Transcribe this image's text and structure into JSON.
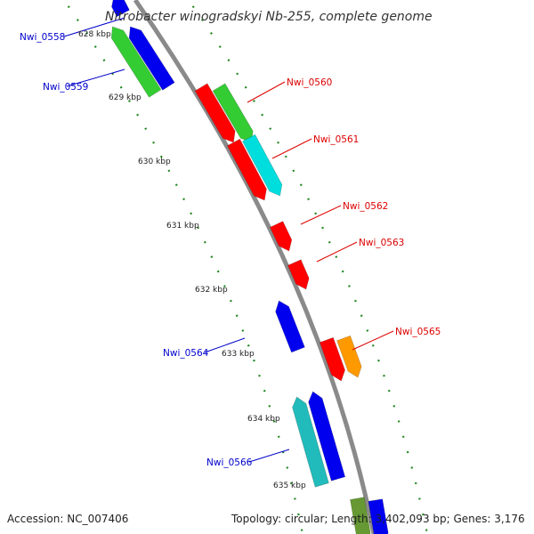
{
  "title": "Nitrobacter winogradskyi Nb-255, complete genome",
  "footer": {
    "accession": "Accession: NC_007406",
    "summary": "Topology: circular; Length: 3,402,093 bp; Genes: 3,176"
  },
  "ticks": [
    "628 kbp",
    "629 kbp",
    "630 kbp",
    "631 kbp",
    "632 kbp",
    "633 kbp",
    "634 kbp",
    "635 kbp"
  ],
  "genes": [
    {
      "label": "Nwi_0558",
      "strand": "reverse",
      "color": "#0000cc"
    },
    {
      "label": "Nwi_0559",
      "strand": "reverse",
      "color": "#0000cc"
    },
    {
      "label": "Nwi_0560",
      "strand": "forward",
      "color": "#dd0000"
    },
    {
      "label": "Nwi_0561",
      "strand": "forward",
      "color": "#dd0000"
    },
    {
      "label": "Nwi_0562",
      "strand": "forward",
      "color": "#dd0000"
    },
    {
      "label": "Nwi_0563",
      "strand": "forward",
      "color": "#dd0000"
    },
    {
      "label": "Nwi_0564",
      "strand": "reverse",
      "color": "#0000cc"
    },
    {
      "label": "Nwi_0565",
      "strand": "forward",
      "color": "#dd0000"
    },
    {
      "label": "Nwi_0566",
      "strand": "reverse",
      "color": "#0000cc"
    }
  ],
  "colors": {
    "backbone": "#888888",
    "forward_cds": "#ff0000",
    "reverse_cds": "#0000ee",
    "cog_green": "#33cc33",
    "cog_cyan": "#00dddd",
    "cog_orange": "#ff9900",
    "cog_teal": "#22bbbb",
    "cog_olive": "#669933",
    "tick_dots": "#228822"
  }
}
